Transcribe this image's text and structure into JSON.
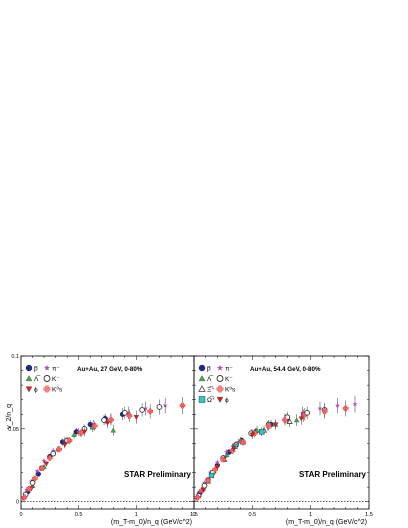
{
  "chart_data": [
    {
      "type": "scatter",
      "title": "Au+Au, 27 GeV, 0-80%",
      "watermark": "STAR Preliminary",
      "xlabel": "(m_T-m_0)/n_q (GeV/c^2)",
      "ylabel": "v_2/n_q",
      "xlim": [
        0,
        1.5
      ],
      "ylim": [
        -0.005,
        0.1
      ],
      "xticks": [
        "0",
        "0.5",
        "1",
        "1.5"
      ],
      "yticks": [
        "0",
        "0.05",
        "0.1"
      ],
      "grid": false,
      "zero_line": "dashed",
      "legend_position": "top-left",
      "legend_rows": [
        [
          "p̅",
          "π⁻"
        ],
        [
          "Λ̅",
          "K⁻"
        ],
        [
          "ϕ",
          "K⁰s"
        ]
      ],
      "series": [
        {
          "name": "p̅",
          "marker": "circle",
          "color": "#1f2a8a",
          "x": [
            0.06,
            0.15,
            0.25,
            0.36,
            0.48,
            0.6,
            0.73,
            0.88
          ],
          "y": [
            0.007,
            0.019,
            0.031,
            0.041,
            0.048,
            0.053,
            0.057,
            0.06
          ]
        },
        {
          "name": "π⁻",
          "marker": "star",
          "color": "#b04dbe",
          "x": [
            0.02,
            0.05,
            0.09,
            0.14,
            0.2,
            0.28,
            0.38,
            0.5,
            0.63,
            0.78,
            0.93,
            1.08,
            1.25
          ],
          "y": [
            0.002,
            0.008,
            0.014,
            0.021,
            0.028,
            0.035,
            0.042,
            0.048,
            0.053,
            0.057,
            0.061,
            0.064,
            0.066
          ]
        },
        {
          "name": "Λ̅",
          "marker": "triangle-up",
          "color": "#49a84a",
          "x": [
            0.1,
            0.2,
            0.32,
            0.46,
            0.62,
            0.8
          ],
          "y": [
            0.011,
            0.024,
            0.036,
            0.046,
            0.051,
            0.049
          ]
        },
        {
          "name": "K⁻",
          "marker": "open-circle",
          "color": "#333333",
          "x": [
            0.04,
            0.1,
            0.18,
            0.28,
            0.4,
            0.55,
            0.72,
            0.9,
            1.05,
            1.2
          ],
          "y": [
            0.005,
            0.013,
            0.023,
            0.033,
            0.042,
            0.05,
            0.056,
            0.061,
            0.063,
            0.065
          ]
        },
        {
          "name": "ϕ",
          "marker": "triangle-down",
          "color": "#d62222",
          "x": [
            0.09,
            0.22,
            0.38,
            0.55,
            0.75,
            1.0
          ],
          "y": [
            0.009,
            0.026,
            0.039,
            0.048,
            0.054,
            0.058
          ]
        },
        {
          "name": "K⁰s",
          "marker": "cross-open",
          "color": "#e83d3d",
          "x": [
            0.03,
            0.07,
            0.12,
            0.18,
            0.25,
            0.33,
            0.42,
            0.52,
            0.64,
            0.78,
            0.94,
            1.12,
            1.4
          ],
          "y": [
            0.003,
            0.009,
            0.016,
            0.023,
            0.03,
            0.036,
            0.042,
            0.047,
            0.052,
            0.056,
            0.059,
            0.062,
            0.066
          ]
        }
      ]
    },
    {
      "type": "scatter",
      "title": "Au+Au, 54.4 GeV, 0-80%",
      "watermark": "STAR Preliminary",
      "xlabel": "(m_T-m_0)/n_q (GeV/c^2)",
      "ylabel": "",
      "xlim": [
        0,
        1.5
      ],
      "ylim": [
        -0.005,
        0.1
      ],
      "xticks": [
        "0",
        "0.5",
        "1",
        "1.5"
      ],
      "yticks": [],
      "grid": false,
      "zero_line": "dashed",
      "legend_position": "top-left",
      "legend_rows": [
        [
          "p̅",
          "π⁻"
        ],
        [
          "Λ̅",
          "K⁻"
        ],
        [
          "Ξ̅⁺",
          "K⁰s"
        ],
        [
          "Ω̅⁺",
          "ϕ"
        ]
      ],
      "series": [
        {
          "name": "p̅",
          "marker": "circle",
          "color": "#1f2a8a",
          "x": [
            0.05,
            0.12,
            0.2,
            0.3,
            0.41,
            0.53,
            0.66,
            0.8,
            0.95
          ],
          "y": [
            0.006,
            0.015,
            0.025,
            0.034,
            0.042,
            0.048,
            0.053,
            0.057,
            0.06
          ]
        },
        {
          "name": "π⁻",
          "marker": "star",
          "color": "#b04dbe",
          "x": [
            0.02,
            0.05,
            0.09,
            0.14,
            0.2,
            0.28,
            0.38,
            0.5,
            0.63,
            0.78,
            0.93,
            1.08,
            1.23,
            1.38
          ],
          "y": [
            0.002,
            0.007,
            0.013,
            0.02,
            0.027,
            0.034,
            0.041,
            0.047,
            0.052,
            0.057,
            0.061,
            0.064,
            0.066,
            0.067
          ]
        },
        {
          "name": "Λ̅",
          "marker": "triangle-up",
          "color": "#49a84a",
          "x": [
            0.08,
            0.17,
            0.28,
            0.4,
            0.54,
            0.7,
            0.88
          ],
          "y": [
            0.009,
            0.021,
            0.032,
            0.042,
            0.049,
            0.053,
            0.056
          ]
        },
        {
          "name": "K⁻",
          "marker": "open-circle",
          "color": "#333333",
          "x": [
            0.04,
            0.09,
            0.16,
            0.25,
            0.36,
            0.49,
            0.64,
            0.8,
            0.97,
            1.12
          ],
          "y": [
            0.004,
            0.011,
            0.02,
            0.03,
            0.039,
            0.047,
            0.053,
            0.058,
            0.061,
            0.063
          ]
        },
        {
          "name": "Ξ̅⁺",
          "marker": "triangle-up-open",
          "color": "#555555",
          "x": [
            0.12,
            0.26,
            0.42,
            0.6,
            0.82
          ],
          "y": [
            0.014,
            0.029,
            0.041,
            0.049,
            0.055
          ]
        },
        {
          "name": "K⁰s",
          "marker": "cross-open",
          "color": "#e83d3d",
          "x": [
            0.03,
            0.07,
            0.12,
            0.18,
            0.25,
            0.33,
            0.42,
            0.52,
            0.64,
            0.78,
            0.94,
            1.12,
            1.3
          ],
          "y": [
            0.003,
            0.008,
            0.015,
            0.022,
            0.029,
            0.035,
            0.041,
            0.047,
            0.052,
            0.056,
            0.059,
            0.062,
            0.064
          ]
        },
        {
          "name": "Ω̅⁺",
          "marker": "square",
          "color": "#30c7c7",
          "x": [
            0.15,
            0.35,
            0.58
          ],
          "y": [
            0.018,
            0.038,
            0.048
          ]
        },
        {
          "name": "ϕ",
          "marker": "triangle-down",
          "color": "#d62222",
          "x": [
            0.08,
            0.2,
            0.34,
            0.5,
            0.7,
            0.92
          ],
          "y": [
            0.008,
            0.024,
            0.037,
            0.046,
            0.053,
            0.057
          ]
        }
      ]
    }
  ]
}
